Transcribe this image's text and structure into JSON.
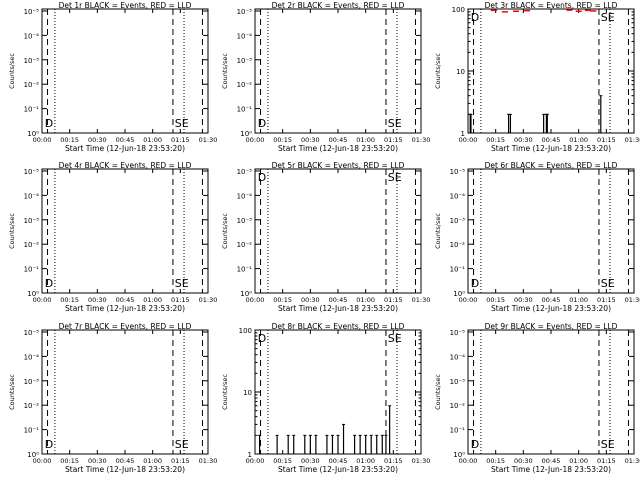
{
  "chart_data": [
    {
      "title": "Det 1r BLACK = Events, RED = LLD",
      "ylabel": "Counts/sec",
      "xlabel": "Start Time (12-Jun-18 23:53:20)",
      "scale": "log",
      "yticks": [
        "10⁰",
        "10⁻¹",
        "10⁻²",
        "10⁻³",
        "10⁻⁴",
        "10⁻⁵"
      ],
      "xticks": [
        "00:00",
        "00:15",
        "00:30",
        "00:45",
        "01:00",
        "01:15",
        "01:30"
      ],
      "annotations": [
        "D",
        "SE"
      ],
      "events": [],
      "lld": []
    },
    {
      "title": "Det 2r BLACK = Events, RED = LLD",
      "ylabel": "Counts/sec",
      "xlabel": "Start Time (12-Jun-18 23:53:20)",
      "scale": "log",
      "yticks": [
        "10⁰",
        "10⁻¹",
        "10⁻²",
        "10⁻³",
        "10⁻⁴",
        "10⁻⁵"
      ],
      "xticks": [
        "00:00",
        "00:15",
        "00:30",
        "00:45",
        "01:00",
        "01:15",
        "01:30"
      ],
      "annotations": [
        "D",
        "SE"
      ],
      "events": [],
      "lld": []
    },
    {
      "title": "Det 3r BLACK = Events, RED = LLD",
      "ylabel": "Counts/sec",
      "xlabel": "Start Time (12-Jun-18 23:53:20)",
      "scale": "log10",
      "yticks": [
        "1",
        "10",
        "100"
      ],
      "xticks": [
        "00:00",
        "00:15",
        "00:30",
        "00:45",
        "01:00",
        "01:15",
        "01:30"
      ],
      "annotations": [
        "D",
        "SE"
      ],
      "events": [
        [
          1.2,
          2
        ],
        [
          1.6,
          2
        ],
        [
          22,
          2
        ],
        [
          23,
          2
        ],
        [
          41,
          2
        ],
        [
          42.5,
          2
        ],
        [
          43,
          2
        ],
        [
          72,
          4
        ]
      ],
      "lld": [
        [
          14,
          95
        ],
        [
          20,
          90
        ],
        [
          26,
          92
        ],
        [
          32,
          94
        ],
        [
          55,
          96
        ],
        [
          60,
          92
        ],
        [
          65,
          95
        ],
        [
          68,
          93
        ]
      ]
    },
    {
      "title": "Det 4r BLACK = Events, RED = LLD",
      "ylabel": "Counts/sec",
      "xlabel": "Start Time (12-Jun-18 23:53:20)",
      "scale": "log",
      "yticks": [
        "10⁰",
        "10⁻¹",
        "10⁻²",
        "10⁻³",
        "10⁻⁴",
        "10⁻⁵"
      ],
      "xticks": [
        "00:00",
        "00:15",
        "00:30",
        "00:45",
        "01:00",
        "01:15",
        "01:30"
      ],
      "annotations": [
        "D",
        "SE"
      ],
      "events": [],
      "lld": []
    },
    {
      "title": "Det 5r BLACK = Events, RED = LLD",
      "ylabel": "Counts/sec",
      "xlabel": "Start Time (12-Jun-18 23:53:20)",
      "scale": "log",
      "yticks": [
        "10⁰",
        "10⁻¹",
        "10⁻²",
        "10⁻³",
        "10⁻⁴",
        "10⁻⁵"
      ],
      "xticks": [
        "00:00",
        "00:15",
        "00:30",
        "00:45",
        "01:00",
        "01:15",
        "01:30"
      ],
      "annotations": [
        "D",
        "SE"
      ],
      "events": [],
      "lld": []
    },
    {
      "title": "Det 6r BLACK = Events, RED = LLD",
      "ylabel": "Counts/sec",
      "xlabel": "Start Time (12-Jun-18 23:53:20)",
      "scale": "log",
      "yticks": [
        "10⁰",
        "10⁻¹",
        "10⁻²",
        "10⁻³",
        "10⁻⁴",
        "10⁻⁵"
      ],
      "xticks": [
        "00:00",
        "00:15",
        "00:30",
        "00:45",
        "01:00",
        "01:15",
        "01:30"
      ],
      "annotations": [
        "D",
        "SE"
      ],
      "events": [],
      "lld": []
    },
    {
      "title": "Det 7r BLACK = Events, RED = LLD",
      "ylabel": "Counts/sec",
      "xlabel": "Start Time (12-Jun-18 23:53:20)",
      "scale": "log",
      "yticks": [
        "10⁰",
        "10⁻¹",
        "10⁻²",
        "10⁻³",
        "10⁻⁴",
        "10⁻⁵"
      ],
      "xticks": [
        "00:00",
        "00:15",
        "00:30",
        "00:45",
        "01:00",
        "01:15",
        "01:30"
      ],
      "annotations": [
        "D",
        "SE"
      ],
      "events": [],
      "lld": []
    },
    {
      "title": "Det 8r BLACK = Events, RED = LLD",
      "ylabel": "Counts/sec",
      "xlabel": "Start Time (12-Jun-18 23:53:20)",
      "scale": "log10",
      "yticks": [
        "1",
        "10",
        "100"
      ],
      "xticks": [
        "00:00",
        "00:15",
        "00:30",
        "00:45",
        "01:00",
        "01:15",
        "01:30"
      ],
      "annotations": [
        "D",
        "SE"
      ],
      "events": [
        [
          1.5,
          1
        ],
        [
          2.5,
          2
        ],
        [
          12,
          2
        ],
        [
          15,
          1
        ],
        [
          18,
          2
        ],
        [
          21,
          2
        ],
        [
          24,
          1
        ],
        [
          27,
          2
        ],
        [
          30,
          2
        ],
        [
          33,
          2
        ],
        [
          36,
          1
        ],
        [
          39,
          2
        ],
        [
          42,
          2
        ],
        [
          45,
          2
        ],
        [
          48,
          3
        ],
        [
          51,
          1
        ],
        [
          54,
          2
        ],
        [
          57,
          2
        ],
        [
          60,
          2
        ],
        [
          63,
          2
        ],
        [
          66,
          2
        ],
        [
          69,
          2
        ],
        [
          71,
          2
        ],
        [
          73,
          6
        ]
      ],
      "lld": []
    },
    {
      "title": "Det 9r BLACK = Events, RED = LLD",
      "ylabel": "Counts/sec",
      "xlabel": "Start Time (12-Jun-18 23:53:20)",
      "scale": "log",
      "yticks": [
        "10⁰",
        "10⁻¹",
        "10⁻²",
        "10⁻³",
        "10⁻⁴",
        "10⁻⁵"
      ],
      "xticks": [
        "00:00",
        "00:15",
        "00:30",
        "00:45",
        "01:00",
        "01:15",
        "01:30"
      ],
      "annotations": [
        "D",
        "SE"
      ],
      "events": [],
      "lld": []
    }
  ],
  "colors": {
    "events": "#000000",
    "lld": "#ff0000",
    "background": "#ffffff"
  }
}
